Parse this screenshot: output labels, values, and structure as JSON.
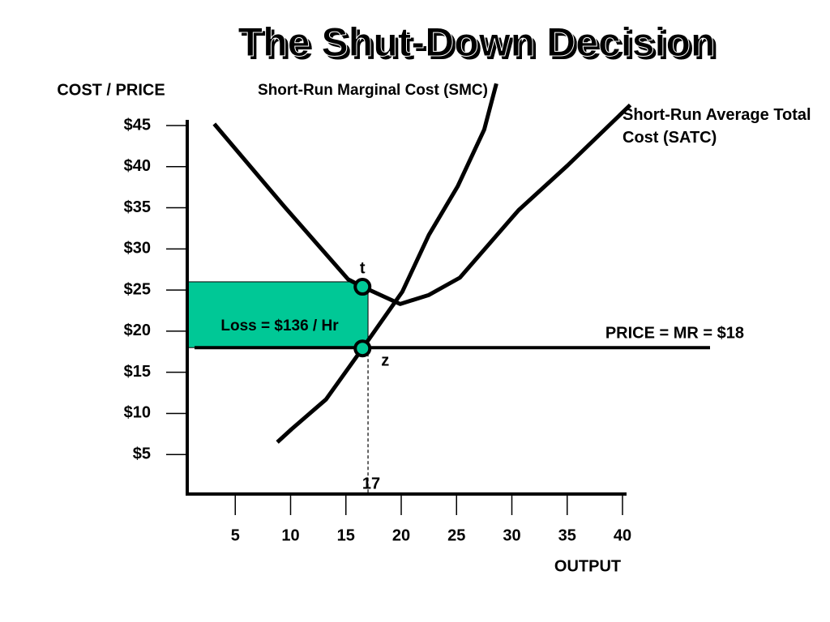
{
  "chart_data": {
    "type": "line",
    "title": "The Shut-Down Decision",
    "y_label": "COST / PRICE",
    "x_label": "OUTPUT",
    "xlim": [
      0,
      40
    ],
    "xticks": [
      5,
      10,
      15,
      20,
      25,
      30,
      35,
      40
    ],
    "ylim": [
      0,
      45
    ],
    "yticks": [
      {
        "value": 5,
        "label": "$5"
      },
      {
        "value": 10,
        "label": "$10"
      },
      {
        "value": 15,
        "label": "$15"
      },
      {
        "value": 20,
        "label": "$20"
      },
      {
        "value": 25,
        "label": "$25"
      },
      {
        "value": 30,
        "label": "$30"
      },
      {
        "value": 35,
        "label": "$35"
      },
      {
        "value": 40,
        "label": "$40"
      },
      {
        "value": 45,
        "label": "$45"
      }
    ],
    "series": [
      {
        "name": "Short-Run Marginal Cost (SMC)",
        "color": "#000000",
        "x": [
          8.8,
          10.1,
          13.2,
          16.5,
          20.1,
          22.5,
          25.1,
          27.5,
          28.6
        ],
        "values": [
          6.5,
          8.1,
          11.7,
          17.9,
          24.8,
          31.7,
          37.6,
          44.5,
          50.1
        ]
      },
      {
        "name": "Short-Run Average Total Cost (SATC)",
        "color": "#000000",
        "x": [
          3.1,
          9.4,
          15.2,
          16.5,
          19.9,
          22.5,
          25.3,
          30.6,
          35,
          40.7
        ],
        "values": [
          45.2,
          35.2,
          26.3,
          25.4,
          23.3,
          24.4,
          26.5,
          34.7,
          40.1,
          47.5
        ]
      }
    ],
    "mr": {
      "label": "PRICE = MR = $18",
      "value": 18
    },
    "quantity": {
      "label": "17",
      "value": 17
    },
    "loss": {
      "label": "Loss = $136 / Hr",
      "top": 26,
      "color": "#00c896"
    },
    "points": [
      {
        "label": "t",
        "x": 16.5,
        "y": 25.4
      },
      {
        "label": "z",
        "x": 16.5,
        "y": 17.9
      }
    ],
    "point_color": "#00c896"
  }
}
